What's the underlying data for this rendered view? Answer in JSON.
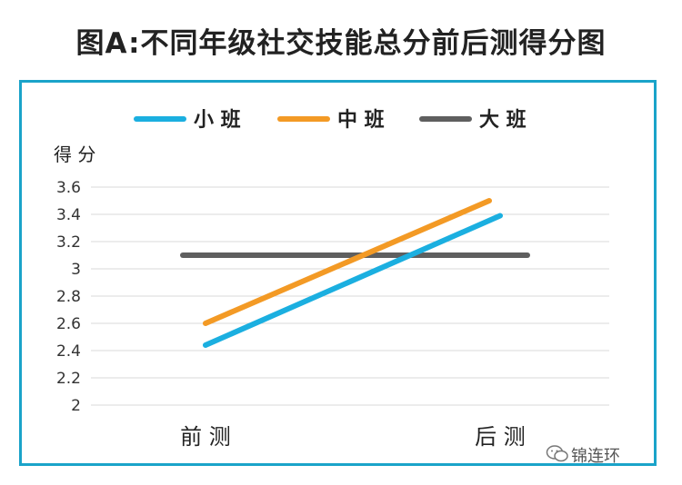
{
  "chart_data": {
    "type": "line",
    "title": "图A:不同年级社交技能总分前后测得分图",
    "ylabel": "得 分",
    "categories": [
      "前 测",
      "后 测"
    ],
    "ylim": [
      2,
      3.6
    ],
    "yticks": [
      "2",
      "2.2",
      "2.4",
      "2.6",
      "2.8",
      "3",
      "3.2",
      "3.4",
      "3.6"
    ],
    "ytick_values": [
      2,
      2.2,
      2.4,
      2.6,
      2.8,
      3,
      3.2,
      3.4,
      3.6
    ],
    "grid": true,
    "legend_position": "top",
    "series": [
      {
        "name": "小 班",
        "color": "#1bafe0",
        "values": [
          2.44,
          3.39
        ]
      },
      {
        "name": "中 班",
        "color": "#f39a25",
        "values": [
          2.6,
          3.5
        ]
      },
      {
        "name": "大 班",
        "color": "#5f5f5f",
        "values": [
          3.1,
          3.1
        ]
      }
    ]
  },
  "watermark": {
    "text": "锦连环",
    "icon": "wechat-icon"
  }
}
